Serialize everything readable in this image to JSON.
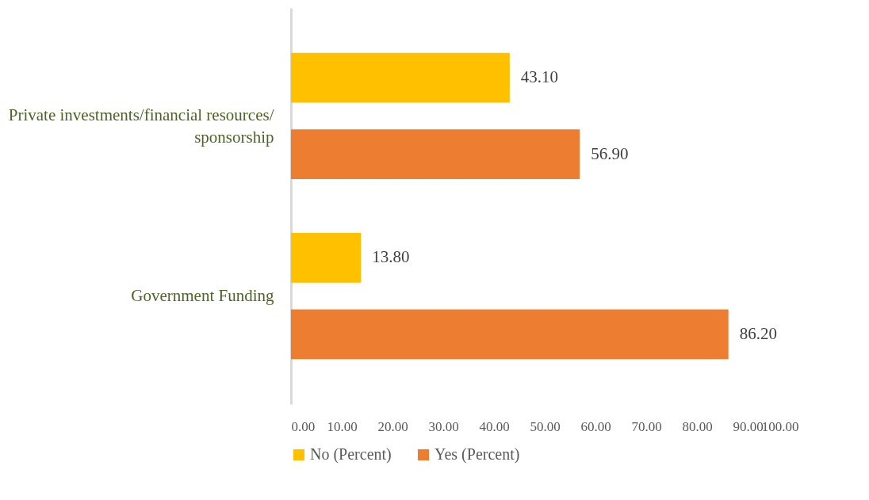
{
  "chart_data": {
    "type": "bar",
    "orientation": "horizontal",
    "categories": [
      "Private investments/financial resources/ sponsorship",
      "Government Funding"
    ],
    "series": [
      {
        "name": "No (Percent)",
        "color": "#ffc000",
        "values": [
          43.1,
          13.8
        ],
        "value_labels": [
          "43.10",
          "13.80"
        ]
      },
      {
        "name": "Yes (Percent)",
        "color": "#ed7d31",
        "values": [
          56.9,
          86.2
        ],
        "value_labels": [
          "56.90",
          "86.20"
        ]
      }
    ],
    "xlim": [
      0,
      100
    ],
    "xticks": [
      {
        "value": 0,
        "label": "0.00"
      },
      {
        "value": 10,
        "label": "10.00"
      },
      {
        "value": 20,
        "label": "20.00"
      },
      {
        "value": 30,
        "label": "30.00"
      },
      {
        "value": 40,
        "label": "40.00"
      },
      {
        "value": 50,
        "label": "50.00"
      },
      {
        "value": 60,
        "label": "60.00"
      },
      {
        "value": 70,
        "label": "70.00"
      },
      {
        "value": 80,
        "label": "80.00"
      },
      {
        "value": 90,
        "label": "90.00"
      },
      {
        "value": 100,
        "label": "100.00"
      }
    ],
    "grid": false,
    "legend": "bottom"
  }
}
